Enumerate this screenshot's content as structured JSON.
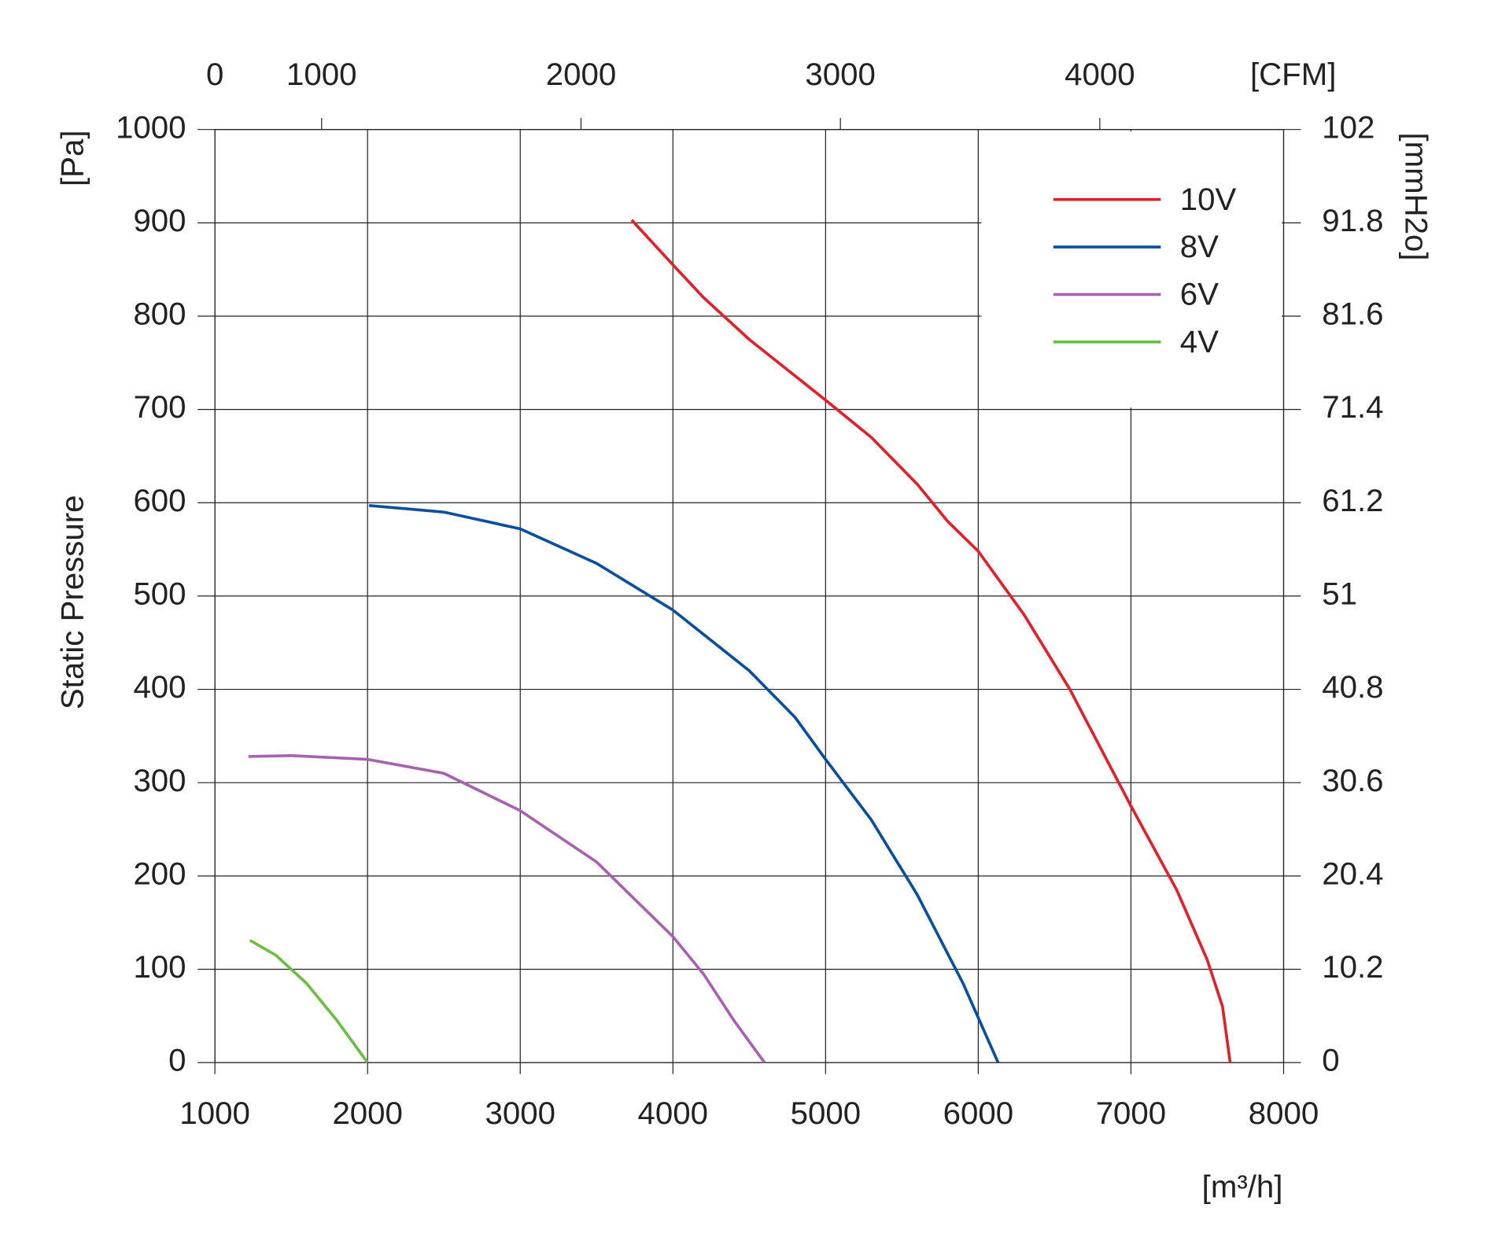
{
  "chart_data": {
    "type": "line",
    "y_label": "Static Pressure",
    "y_unit": "[Pa]",
    "y2_unit": "[mmH2o]",
    "x_unit": "[m³/h]",
    "x2_unit": "[CFM]",
    "xlim": [
      1000,
      8000
    ],
    "xticks": [
      1000,
      2000,
      3000,
      4000,
      5000,
      6000,
      7000,
      8000
    ],
    "ylim": [
      0,
      1000
    ],
    "yticks": [
      0,
      100,
      200,
      300,
      400,
      500,
      600,
      700,
      800,
      900,
      1000
    ],
    "y2lim": [
      0,
      102
    ],
    "y2ticks": [
      0,
      10.2,
      20.4,
      30.6,
      40.8,
      51,
      61.2,
      71.4,
      81.6,
      91.8,
      102
    ],
    "x2lim": [
      588.6,
      4708.6
    ],
    "x2ticks": [
      0,
      1000,
      2000,
      3000,
      4000
    ],
    "grid": true,
    "legend": "upper right",
    "series": [
      {
        "name": "10V",
        "color": "#e0202a",
        "x": [
          3730,
          4000,
          4200,
          4500,
          5000,
          5300,
          5600,
          5800,
          6000,
          6300,
          6600,
          7000,
          7300,
          7500,
          7600,
          7650
        ],
        "values": [
          903,
          855,
          820,
          775,
          710,
          670,
          620,
          580,
          548,
          480,
          400,
          275,
          185,
          110,
          60,
          0
        ]
      },
      {
        "name": "8V",
        "color": "#0a4e9e",
        "x": [
          2010,
          2500,
          3000,
          3500,
          4000,
          4500,
          4800,
          5000,
          5300,
          5600,
          5900,
          6130
        ],
        "values": [
          597,
          590,
          572,
          535,
          485,
          420,
          370,
          325,
          260,
          180,
          85,
          0
        ]
      },
      {
        "name": "6V",
        "color": "#a860b0",
        "x": [
          1220,
          1500,
          2000,
          2500,
          3000,
          3500,
          4000,
          4200,
          4400,
          4600
        ],
        "values": [
          328,
          329,
          325,
          310,
          270,
          215,
          135,
          95,
          45,
          0
        ]
      },
      {
        "name": "4V",
        "color": "#6cbd45",
        "x": [
          1230,
          1400,
          1600,
          1800,
          2000
        ],
        "values": [
          131,
          115,
          85,
          45,
          0
        ]
      }
    ]
  }
}
